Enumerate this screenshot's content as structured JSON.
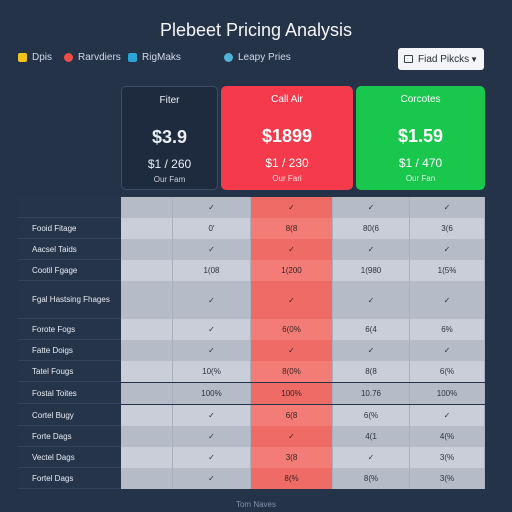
{
  "title": "Plebeet Pricing Analysis",
  "filters": [
    {
      "label": "Dpis",
      "color": "#f2c419"
    },
    {
      "label": "Rarvdiers",
      "color": "#f24b4b"
    },
    {
      "label": "RigMaks",
      "color": "#2aa5d8"
    },
    {
      "label": "Leapy Pries",
      "color": "#4fb3d9"
    }
  ],
  "dropdown": {
    "label": "Fiad Pikcks"
  },
  "plans": [
    {
      "name": "Fiter",
      "price": "$3.9",
      "yearly": "$1 / 260",
      "per": "Our Fam"
    },
    {
      "name": "Call Air",
      "price": "$1899",
      "yearly": "$1 / 230",
      "per": "Our Fari"
    },
    {
      "name": "Corcotes",
      "price": "$1.59",
      "yearly": "$1 / 470",
      "per": "Our Fan"
    }
  ],
  "table": {
    "header_row": [
      "",
      "✓",
      "✓",
      "✓",
      "✓"
    ],
    "rows": [
      {
        "label": "Fooid Fitage",
        "values": [
          "0'",
          "8(8",
          "80(6",
          "3(6"
        ]
      },
      {
        "label": "Aacsel Taids",
        "values": [
          "✓",
          "✓",
          "✓",
          "✓"
        ]
      },
      {
        "label": "Cootil Fgage",
        "values": [
          "1(08",
          "1(200",
          "1(980",
          "1(5%"
        ]
      },
      {
        "label": "Fgal Hastsing Fhages",
        "values": [
          "✓",
          "✓",
          "✓",
          "✓"
        ]
      },
      {
        "label": "Forote Fogs",
        "values": [
          "✓",
          "6(0%",
          "6(4",
          "6%"
        ]
      },
      {
        "label": "Fatte Doigs",
        "values": [
          "✓",
          "✓",
          "✓",
          "✓"
        ]
      },
      {
        "label": "Tatel Fougs",
        "values": [
          "10(%",
          "8(0%",
          "8(8",
          "6(%"
        ]
      },
      {
        "label": "Fostal Toites",
        "values": [
          "100%",
          "100%",
          "10.76",
          "100%"
        ]
      },
      {
        "label": "Cortel Bugy",
        "values": [
          "✓",
          "6(8",
          "6(%",
          "✓"
        ]
      },
      {
        "label": "Forte Dags",
        "values": [
          "✓",
          "✓",
          "4(1",
          "4(%"
        ]
      },
      {
        "label": "Vectel Dags",
        "values": [
          "✓",
          "3(8",
          "✓",
          "3(%"
        ]
      },
      {
        "label": "Fortel Dags",
        "values": [
          "✓",
          "8(%",
          "8(%",
          "3(%"
        ]
      }
    ]
  },
  "footer": "Tom Naves",
  "colors": {
    "background": "#253349",
    "highlight": "#f37d76",
    "red_plan": "#f53a4c",
    "green_plan": "#18c74b"
  }
}
